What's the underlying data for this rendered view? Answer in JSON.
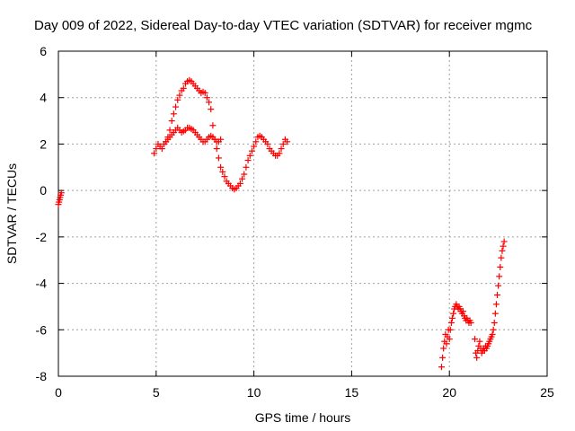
{
  "chart_data": {
    "type": "scatter",
    "title": "Day 009 of 2022, Sidereal Day-to-day VTEC variation (SDTVAR) for receiver mgmc",
    "xlabel": "GPS time / hours",
    "ylabel": "SDTVAR / TECUs",
    "xlim": [
      0,
      25
    ],
    "ylim": [
      -8,
      6
    ],
    "xticks": [
      0,
      5,
      10,
      15,
      20,
      25
    ],
    "yticks": [
      -8,
      -6,
      -4,
      -2,
      0,
      2,
      4,
      6
    ],
    "grid": true,
    "marker": "plus",
    "color": "#ff0000",
    "segments": [
      {
        "x": [
          0.0,
          0.03,
          0.06,
          0.09,
          0.12,
          0.15
        ],
        "y": [
          -0.6,
          -0.5,
          -0.4,
          -0.3,
          -0.2,
          -0.1
        ]
      },
      {
        "x": [
          4.9,
          5.0,
          5.1,
          5.2,
          5.3,
          5.4,
          5.5,
          5.6,
          5.7,
          5.8,
          5.9,
          6.0,
          6.1,
          6.2,
          6.3,
          6.4,
          6.5,
          6.6,
          6.7,
          6.8,
          6.9,
          7.0,
          7.1,
          7.2,
          7.3,
          7.4,
          7.5,
          7.6,
          7.7,
          7.8,
          7.9,
          8.0,
          8.1,
          8.2,
          8.3,
          8.4,
          8.5,
          8.6,
          8.7,
          8.8,
          8.9,
          9.0,
          9.1,
          9.2,
          9.3,
          9.4,
          9.5,
          9.6,
          9.7,
          9.8,
          9.9,
          10.0,
          10.1,
          10.2,
          10.3,
          10.4,
          10.5,
          10.6,
          10.7,
          10.8,
          10.9,
          11.0,
          11.1,
          11.2,
          11.3,
          11.4,
          11.5,
          11.6,
          11.7
        ],
        "y": [
          1.6,
          1.8,
          2.0,
          1.9,
          1.8,
          2.0,
          2.1,
          2.3,
          2.6,
          3.0,
          3.3,
          3.6,
          3.9,
          4.1,
          4.3,
          4.4,
          4.6,
          4.7,
          4.75,
          4.7,
          4.6,
          4.5,
          4.4,
          4.3,
          4.2,
          4.25,
          4.2,
          4.0,
          3.8,
          3.5,
          2.8,
          2.2,
          1.8,
          1.4,
          1.0,
          0.8,
          0.6,
          0.4,
          0.3,
          0.2,
          0.1,
          0.05,
          0.1,
          0.2,
          0.3,
          0.5,
          0.7,
          1.0,
          1.3,
          1.5,
          1.7,
          1.9,
          2.1,
          2.3,
          2.35,
          2.3,
          2.2,
          2.1,
          2.0,
          1.8,
          1.7,
          1.6,
          1.5,
          1.5,
          1.6,
          1.8,
          2.0,
          2.2,
          2.1
        ]
      },
      {
        "x": [
          5.5,
          5.6,
          5.7,
          5.8,
          5.9,
          6.0,
          6.1,
          6.2,
          6.3,
          6.4,
          6.5,
          6.6,
          6.7,
          6.8,
          6.9,
          7.0,
          7.1,
          7.2,
          7.3,
          7.4,
          7.5,
          7.6,
          7.7,
          7.8,
          7.9,
          8.0,
          8.1,
          8.2,
          8.3
        ],
        "y": [
          2.1,
          2.2,
          2.3,
          2.4,
          2.5,
          2.6,
          2.7,
          2.6,
          2.5,
          2.55,
          2.6,
          2.7,
          2.7,
          2.65,
          2.6,
          2.5,
          2.4,
          2.3,
          2.2,
          2.1,
          2.1,
          2.2,
          2.3,
          2.35,
          2.3,
          2.2,
          2.1,
          2.1,
          2.2
        ]
      },
      {
        "x": [
          19.6,
          19.65,
          19.7,
          19.75,
          19.8,
          19.85,
          19.9,
          19.95,
          20.0,
          20.05,
          20.1,
          20.15,
          20.2,
          20.25,
          20.3,
          20.35,
          20.4,
          20.45,
          20.5,
          20.55,
          20.6,
          20.65,
          20.7,
          20.75,
          20.8,
          20.85,
          20.9,
          20.95,
          21.0,
          21.05,
          21.1
        ],
        "y": [
          -7.6,
          -7.2,
          -6.8,
          -6.5,
          -6.2,
          -6.6,
          -6.3,
          -6.0,
          -6.4,
          -6.0,
          -5.7,
          -5.5,
          -5.3,
          -5.1,
          -5.0,
          -4.9,
          -5.0,
          -5.1,
          -5.0,
          -5.1,
          -5.2,
          -5.3,
          -5.2,
          -5.4,
          -5.5,
          -5.6,
          -5.5,
          -5.6,
          -5.7,
          -5.6,
          -5.7
        ]
      },
      {
        "x": [
          21.3,
          21.35,
          21.4,
          21.45,
          21.5,
          21.55,
          21.6,
          21.65,
          21.7,
          21.75,
          21.8,
          21.85,
          21.9,
          21.95,
          22.0,
          22.05,
          22.1,
          22.15,
          22.2,
          22.25,
          22.3,
          22.35,
          22.4,
          22.45,
          22.5,
          22.55,
          22.6,
          22.65,
          22.7,
          22.75,
          22.8
        ],
        "y": [
          -6.4,
          -7.0,
          -7.2,
          -6.9,
          -6.7,
          -6.5,
          -6.8,
          -7.0,
          -6.9,
          -6.8,
          -6.9,
          -6.7,
          -6.8,
          -6.7,
          -6.6,
          -6.5,
          -6.4,
          -6.3,
          -6.2,
          -6.0,
          -5.7,
          -5.3,
          -4.9,
          -4.5,
          -4.1,
          -3.7,
          -3.3,
          -2.9,
          -2.6,
          -2.4,
          -2.2
        ]
      }
    ]
  }
}
